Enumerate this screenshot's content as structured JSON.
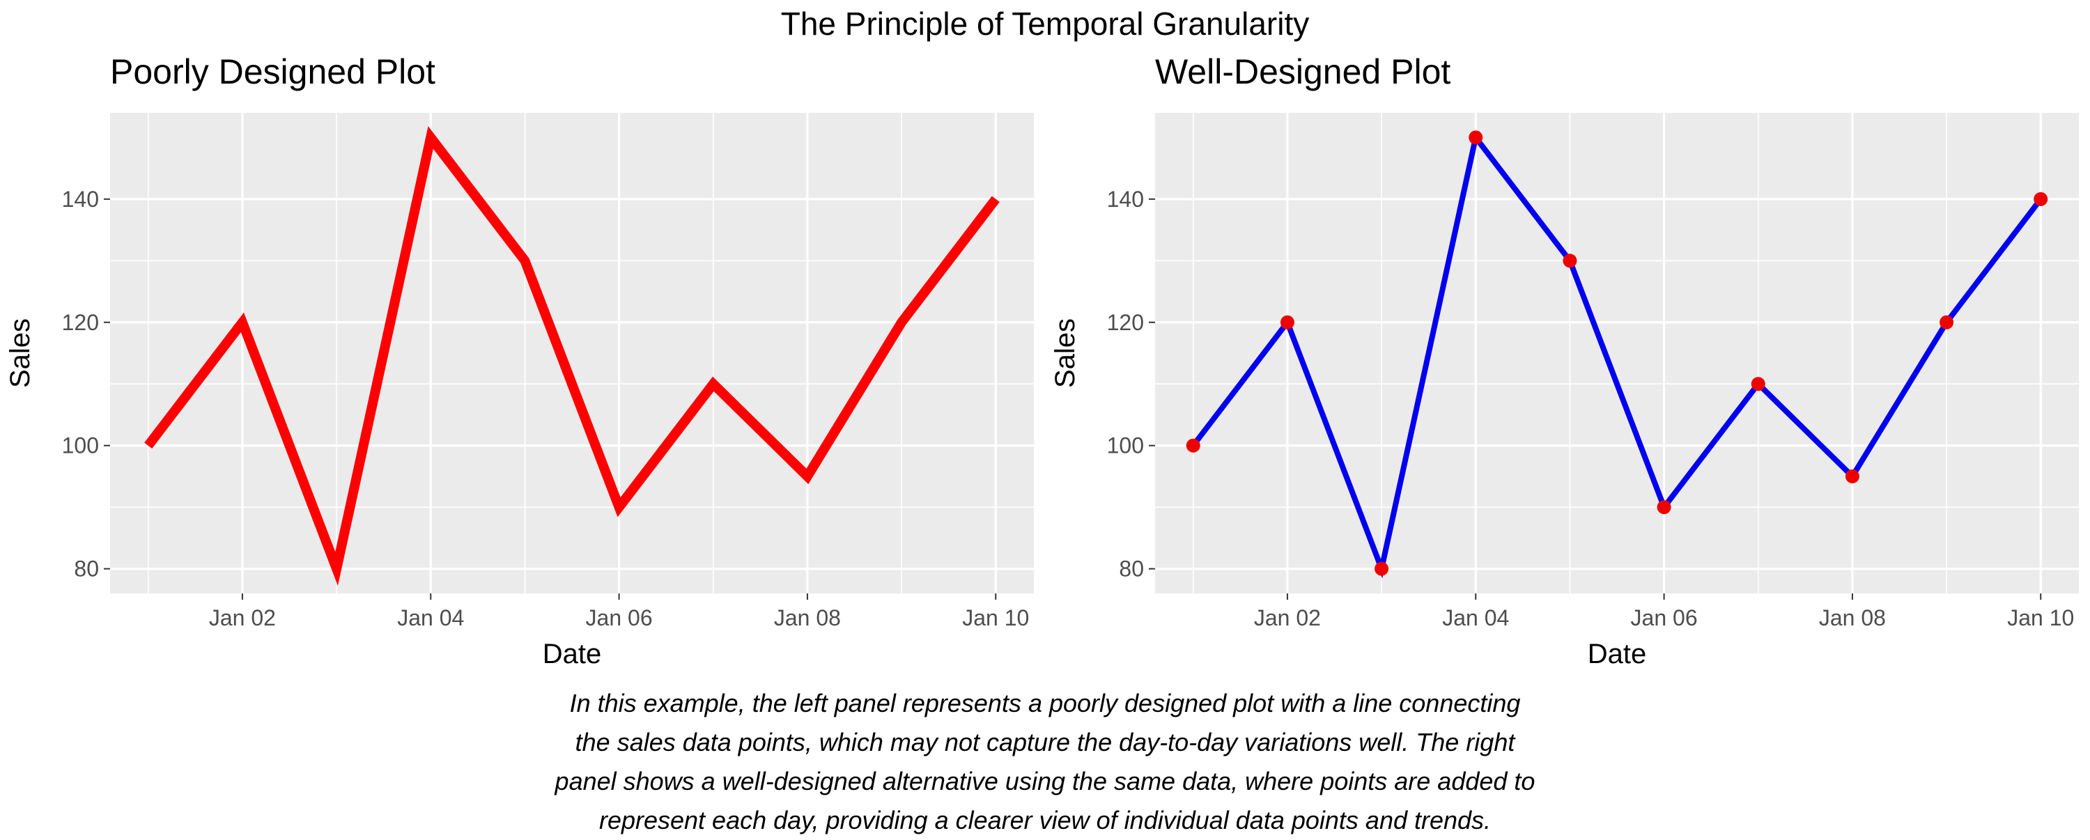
{
  "figure": {
    "title": "The Principle of Temporal Granularity",
    "caption_lines": [
      "In this example, the left panel represents a poorly designed plot with a line connecting",
      "the sales data points, which may not capture the day-to-day variations well. The right",
      "panel shows a well-designed alternative using the same data, where points are added to",
      "represent each day, providing a clearer view of individual data points and trends."
    ]
  },
  "chart_data": [
    {
      "type": "line",
      "title": "Poorly Designed Plot",
      "xlabel": "Date",
      "ylabel": "Sales",
      "x": [
        "2024-01-01",
        "2024-01-02",
        "2024-01-03",
        "2024-01-04",
        "2024-01-05",
        "2024-01-06",
        "2024-01-07",
        "2024-01-08",
        "2024-01-09",
        "2024-01-10"
      ],
      "x_ticks": [
        "Jan 02",
        "Jan 04",
        "Jan 06",
        "Jan 08",
        "Jan 10"
      ],
      "y_ticks": [
        80,
        100,
        120,
        140
      ],
      "ylim": [
        76,
        154
      ],
      "grid": true,
      "series": [
        {
          "values": [
            100,
            120,
            80,
            150,
            130,
            90,
            110,
            95,
            120,
            140
          ],
          "color": "#FF0000",
          "markers": false
        }
      ]
    },
    {
      "type": "line",
      "title": "Well-Designed Plot",
      "xlabel": "Date",
      "ylabel": "Sales",
      "x": [
        "2024-01-01",
        "2024-01-02",
        "2024-01-03",
        "2024-01-04",
        "2024-01-05",
        "2024-01-06",
        "2024-01-07",
        "2024-01-08",
        "2024-01-09",
        "2024-01-10"
      ],
      "x_ticks": [
        "Jan 02",
        "Jan 04",
        "Jan 06",
        "Jan 08",
        "Jan 10"
      ],
      "y_ticks": [
        80,
        100,
        120,
        140
      ],
      "ylim": [
        76,
        154
      ],
      "grid": true,
      "series": [
        {
          "values": [
            100,
            120,
            80,
            150,
            130,
            90,
            110,
            95,
            120,
            140
          ],
          "color": "#0000EE",
          "marker_color": "#EE0000",
          "markers": true
        }
      ]
    }
  ]
}
